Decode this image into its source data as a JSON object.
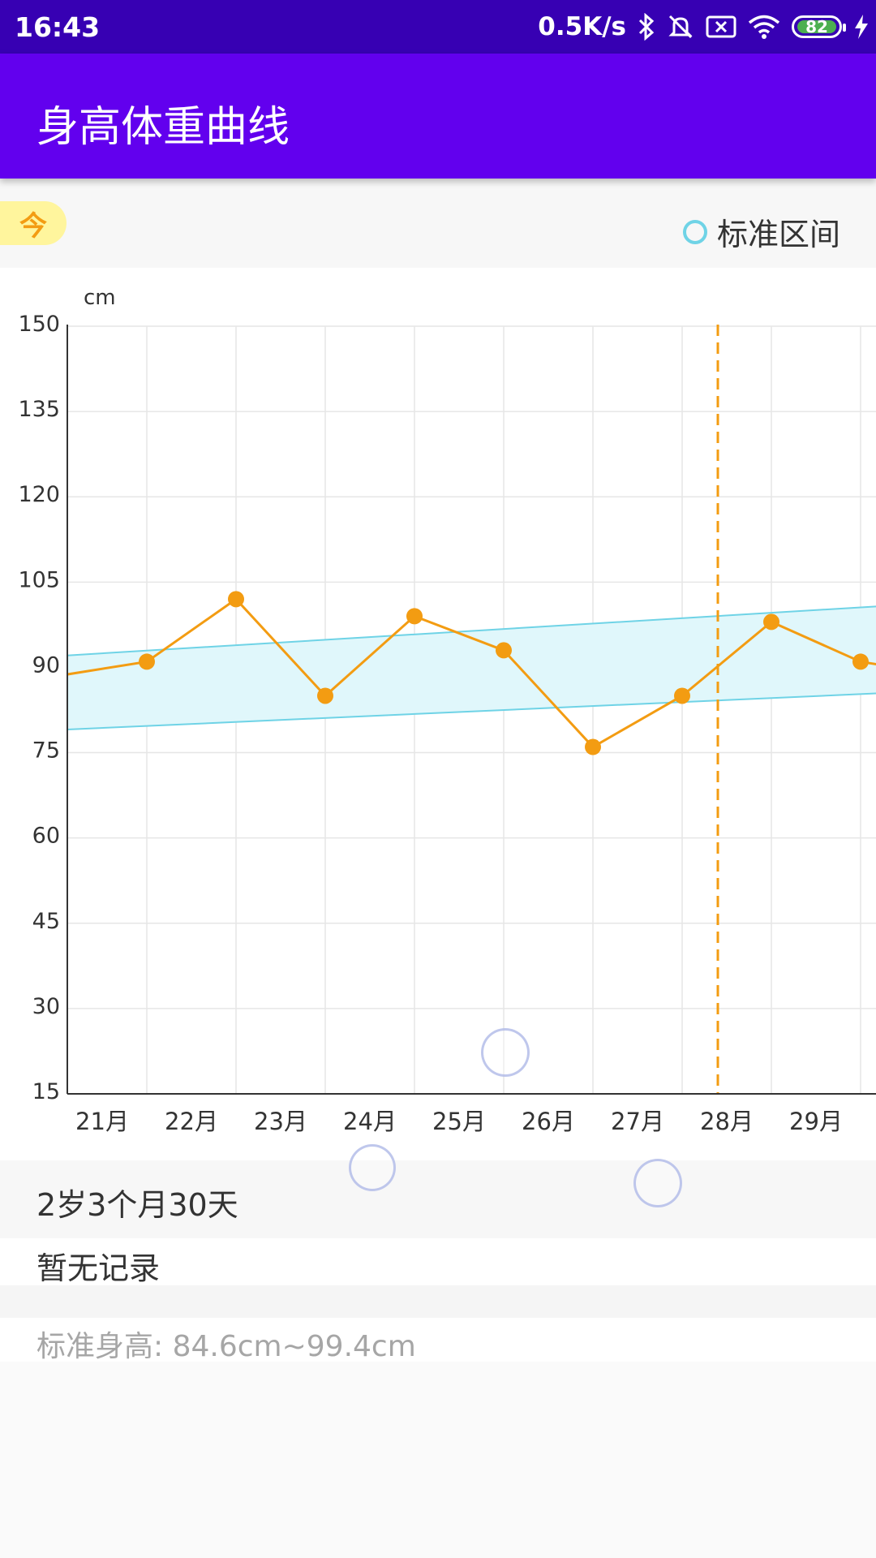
{
  "status_bar": {
    "time": "16:43",
    "net_speed": "0.5K/s",
    "battery": "82",
    "icons": [
      "bluetooth-icon",
      "mute-bell-icon",
      "sim-x-icon",
      "wifi-icon",
      "battery-icon",
      "charging-bolt-icon"
    ]
  },
  "app_bar": {
    "title": "身高体重曲线"
  },
  "top_row": {
    "today_label": "今",
    "legend_label": "标准区间"
  },
  "colors": {
    "primary": "#6200ee",
    "status": "#3700b3",
    "line": "#f39c12",
    "band_stroke": "#6fd3e6",
    "band_fill": "#e0f7fb"
  },
  "chart_data": {
    "type": "line",
    "y_unit_label": "cm",
    "y_ticks": [
      150,
      135,
      120,
      105,
      90,
      75,
      60,
      45,
      30,
      15
    ],
    "ylim": [
      15,
      150
    ],
    "x_ticks": [
      "21月",
      "22月",
      "23月",
      "24月",
      "25月",
      "26月",
      "27月",
      "28月",
      "29月"
    ],
    "series": [
      {
        "x": [
          20.5,
          21.5,
          22.5,
          23.5,
          24.5,
          25.5,
          26.5,
          27.5,
          28.5,
          29.5,
          30.5
        ],
        "values": [
          88.5,
          91,
          102,
          85,
          99,
          93,
          76,
          85,
          98,
          91,
          88.5
        ]
      }
    ],
    "standard_band": {
      "x": [
        20.5,
        30.5
      ],
      "lower": [
        79,
        86
      ],
      "upper": [
        92,
        101.5
      ]
    },
    "current_marker_x": 27.9,
    "grid": true
  },
  "info": {
    "age": "2岁3个月30天",
    "record": "暂无记录",
    "standard_height": "标准身高: 84.6cm~99.4cm"
  }
}
